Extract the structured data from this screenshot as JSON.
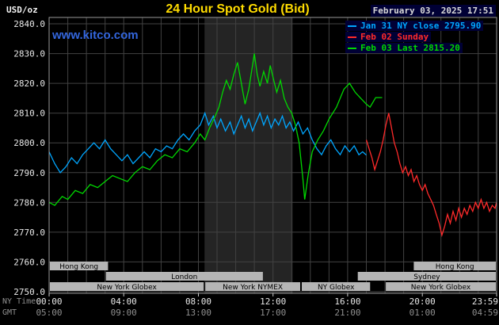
{
  "header": {
    "units": "USD/oz",
    "title": "24 Hour Spot Gold (Bid)",
    "datetime": "February 03, 2025 17:51",
    "watermark": "www.kitco.com"
  },
  "legend": [
    {
      "label": "Jan 31 NY close 2795.90",
      "color": "#00a6ff"
    },
    {
      "label": "Feb 02 Sunday",
      "color": "#ff2a2a"
    },
    {
      "label": "Feb 03 Last 2815.20",
      "color": "#00d800"
    }
  ],
  "axis": {
    "ny_time_label": "NY Time",
    "gmt_label": "GMT",
    "x_ticks": [
      {
        "hour": 0,
        "ny": "00:00",
        "gmt": "05:00"
      },
      {
        "hour": 4,
        "ny": "04:00",
        "gmt": "09:00"
      },
      {
        "hour": 8,
        "ny": "08:00",
        "gmt": "13:00"
      },
      {
        "hour": 12,
        "ny": "12:00",
        "gmt": "17:00"
      },
      {
        "hour": 16,
        "ny": "16:00",
        "gmt": "21:00"
      },
      {
        "hour": 20,
        "ny": "20:00",
        "gmt": "01:00"
      },
      {
        "hour": 23.983,
        "ny": "23:59",
        "gmt": "04:59"
      }
    ],
    "y_ticks": [
      "2840.0",
      "2830.0",
      "2820.0",
      "2810.0",
      "2800.0",
      "2790.0",
      "2780.0",
      "2770.0",
      "2760.0",
      "2750.0"
    ]
  },
  "sessions": {
    "rows": [
      [
        {
          "label": "Hong Kong",
          "start": 0,
          "end": 3.2
        },
        {
          "label": "Hong Kong",
          "start": 19.5,
          "end": 23.983
        }
      ],
      [
        {
          "label": "London",
          "start": 3.0,
          "end": 11.5
        },
        {
          "label": "Sydney",
          "start": 16.5,
          "end": 23.983
        }
      ],
      [
        {
          "label": "New York Globex",
          "start": 0,
          "end": 8.33
        },
        {
          "label": "New York NYMEX",
          "start": 8.33,
          "end": 13.5
        },
        {
          "label": "NY Globex",
          "start": 13.5,
          "end": 17.25
        },
        {
          "label": "New York Globex",
          "start": 18.0,
          "end": 23.983
        }
      ]
    ]
  },
  "colors": {
    "background": "#000000",
    "grid": "#424242",
    "band": "#242424",
    "border": "#999999",
    "title": "#ffdc00",
    "watermark": "#3366dd",
    "session_bar": "#b5b5b5",
    "axis_text": "#e8e8e8",
    "axis_text_dim": "#8f8f8f"
  },
  "chart_data": {
    "type": "line",
    "title": "24 Hour Spot Gold (Bid)",
    "xlabel": "NY Time (hours 00:00-23:59)",
    "ylabel": "USD/oz",
    "ylim": [
      2750,
      2840
    ],
    "x_range_hours": [
      0,
      23.983
    ],
    "grid": true,
    "legend_position": "top-right",
    "highlight_band_hours": [
      8.33,
      13.05
    ],
    "series": [
      {
        "name": "Jan 31 NY close 2795.90",
        "color": "#00a6ff",
        "points": [
          [
            0,
            2797
          ],
          [
            0.3,
            2793
          ],
          [
            0.6,
            2790
          ],
          [
            0.9,
            2792
          ],
          [
            1.2,
            2795
          ],
          [
            1.5,
            2793
          ],
          [
            1.8,
            2796
          ],
          [
            2.1,
            2798
          ],
          [
            2.4,
            2800
          ],
          [
            2.7,
            2798
          ],
          [
            3,
            2801
          ],
          [
            3.3,
            2798
          ],
          [
            3.6,
            2796
          ],
          [
            3.9,
            2794
          ],
          [
            4.2,
            2796
          ],
          [
            4.5,
            2793
          ],
          [
            4.8,
            2795
          ],
          [
            5.1,
            2797
          ],
          [
            5.4,
            2795
          ],
          [
            5.7,
            2798
          ],
          [
            6,
            2797
          ],
          [
            6.3,
            2799
          ],
          [
            6.6,
            2798
          ],
          [
            6.9,
            2801
          ],
          [
            7.2,
            2803
          ],
          [
            7.5,
            2801
          ],
          [
            7.8,
            2804
          ],
          [
            8.1,
            2806
          ],
          [
            8.35,
            2810
          ],
          [
            8.55,
            2806
          ],
          [
            8.8,
            2809
          ],
          [
            9,
            2805
          ],
          [
            9.2,
            2808
          ],
          [
            9.45,
            2804
          ],
          [
            9.7,
            2807
          ],
          [
            9.9,
            2803
          ],
          [
            10.1,
            2806
          ],
          [
            10.3,
            2809
          ],
          [
            10.5,
            2805
          ],
          [
            10.7,
            2808
          ],
          [
            10.9,
            2804
          ],
          [
            11.1,
            2807
          ],
          [
            11.3,
            2810
          ],
          [
            11.5,
            2806
          ],
          [
            11.7,
            2809
          ],
          [
            11.9,
            2805
          ],
          [
            12.1,
            2808
          ],
          [
            12.3,
            2806
          ],
          [
            12.5,
            2809
          ],
          [
            12.7,
            2805
          ],
          [
            12.9,
            2807
          ],
          [
            13.1,
            2804
          ],
          [
            13.35,
            2807
          ],
          [
            13.6,
            2803
          ],
          [
            13.85,
            2805
          ],
          [
            14.1,
            2801
          ],
          [
            14.35,
            2798
          ],
          [
            14.6,
            2796
          ],
          [
            14.85,
            2799
          ],
          [
            15.1,
            2801
          ],
          [
            15.35,
            2798
          ],
          [
            15.6,
            2796
          ],
          [
            15.85,
            2799
          ],
          [
            16.1,
            2797
          ],
          [
            16.35,
            2799
          ],
          [
            16.6,
            2796
          ],
          [
            16.8,
            2797
          ],
          [
            17,
            2795.9
          ]
        ]
      },
      {
        "name": "Feb 02 Sunday",
        "color": "#ff2a2a",
        "points": [
          [
            17,
            2801
          ],
          [
            17.15,
            2798
          ],
          [
            17.3,
            2795
          ],
          [
            17.45,
            2791
          ],
          [
            17.6,
            2794
          ],
          [
            17.75,
            2797
          ],
          [
            17.9,
            2801
          ],
          [
            18.05,
            2806
          ],
          [
            18.2,
            2810
          ],
          [
            18.35,
            2805
          ],
          [
            18.5,
            2800
          ],
          [
            18.65,
            2797
          ],
          [
            18.8,
            2793
          ],
          [
            18.95,
            2790
          ],
          [
            19.1,
            2792
          ],
          [
            19.25,
            2789
          ],
          [
            19.4,
            2791
          ],
          [
            19.55,
            2787
          ],
          [
            19.7,
            2789
          ],
          [
            19.85,
            2786
          ],
          [
            20,
            2784
          ],
          [
            20.15,
            2786
          ],
          [
            20.3,
            2783
          ],
          [
            20.45,
            2781
          ],
          [
            20.6,
            2779
          ],
          [
            20.75,
            2776
          ],
          [
            20.9,
            2773
          ],
          [
            21.05,
            2769
          ],
          [
            21.2,
            2772
          ],
          [
            21.35,
            2776
          ],
          [
            21.5,
            2773
          ],
          [
            21.65,
            2777
          ],
          [
            21.8,
            2774
          ],
          [
            21.95,
            2778
          ],
          [
            22.1,
            2775
          ],
          [
            22.25,
            2778
          ],
          [
            22.4,
            2776
          ],
          [
            22.55,
            2779
          ],
          [
            22.7,
            2777
          ],
          [
            22.85,
            2780
          ],
          [
            23,
            2778
          ],
          [
            23.15,
            2781
          ],
          [
            23.3,
            2778
          ],
          [
            23.45,
            2780
          ],
          [
            23.6,
            2777
          ],
          [
            23.75,
            2779
          ],
          [
            23.9,
            2778
          ],
          [
            23.98,
            2780
          ]
        ]
      },
      {
        "name": "Feb 03 Last 2815.20",
        "color": "#00d800",
        "points": [
          [
            0,
            2780
          ],
          [
            0.3,
            2779
          ],
          [
            0.7,
            2782
          ],
          [
            1,
            2781
          ],
          [
            1.4,
            2784
          ],
          [
            1.8,
            2783
          ],
          [
            2.2,
            2786
          ],
          [
            2.6,
            2785
          ],
          [
            3,
            2787
          ],
          [
            3.4,
            2789
          ],
          [
            3.8,
            2788
          ],
          [
            4.2,
            2787
          ],
          [
            4.6,
            2790
          ],
          [
            5,
            2792
          ],
          [
            5.4,
            2791
          ],
          [
            5.8,
            2794
          ],
          [
            6.2,
            2796
          ],
          [
            6.6,
            2795
          ],
          [
            7,
            2798
          ],
          [
            7.4,
            2797
          ],
          [
            7.8,
            2800
          ],
          [
            8.1,
            2803
          ],
          [
            8.35,
            2801
          ],
          [
            8.6,
            2805
          ],
          [
            8.9,
            2809
          ],
          [
            9.1,
            2812
          ],
          [
            9.3,
            2817
          ],
          [
            9.5,
            2821
          ],
          [
            9.7,
            2818
          ],
          [
            9.9,
            2823
          ],
          [
            10.1,
            2827
          ],
          [
            10.3,
            2820
          ],
          [
            10.5,
            2813
          ],
          [
            10.7,
            2818
          ],
          [
            10.9,
            2826
          ],
          [
            11,
            2830
          ],
          [
            11.15,
            2823
          ],
          [
            11.3,
            2819
          ],
          [
            11.5,
            2824
          ],
          [
            11.7,
            2820
          ],
          [
            11.85,
            2826
          ],
          [
            12,
            2822
          ],
          [
            12.2,
            2817
          ],
          [
            12.4,
            2821
          ],
          [
            12.6,
            2815
          ],
          [
            12.8,
            2812
          ],
          [
            13,
            2810
          ],
          [
            13.2,
            2806
          ],
          [
            13.4,
            2800
          ],
          [
            13.6,
            2788
          ],
          [
            13.7,
            2781
          ],
          [
            13.9,
            2790
          ],
          [
            14.1,
            2797
          ],
          [
            14.4,
            2801
          ],
          [
            14.7,
            2804
          ],
          [
            15,
            2808
          ],
          [
            15.4,
            2812
          ],
          [
            15.8,
            2818
          ],
          [
            16.1,
            2820
          ],
          [
            16.4,
            2817
          ],
          [
            16.7,
            2815
          ],
          [
            17,
            2813
          ],
          [
            17.2,
            2812
          ],
          [
            17.5,
            2815.2
          ],
          [
            17.85,
            2815.2
          ]
        ]
      }
    ]
  }
}
